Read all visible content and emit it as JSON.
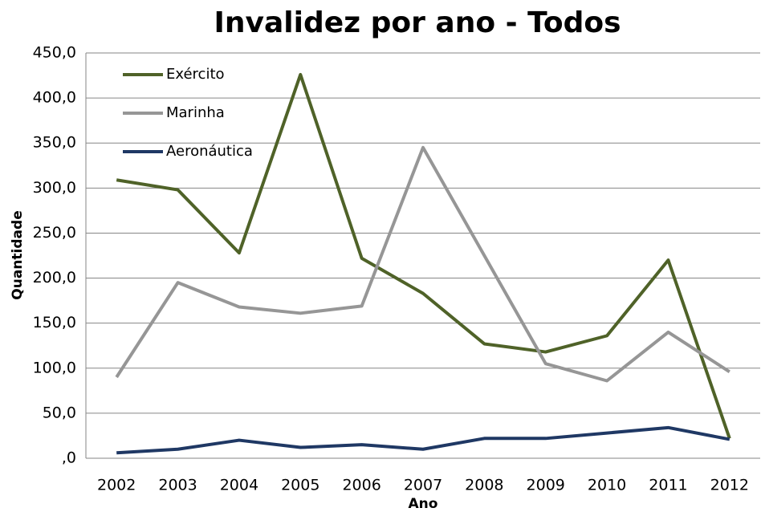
{
  "chart_data": {
    "type": "line",
    "title": "Invalidez por ano - Todos",
    "x_label": "Ano",
    "y_label": "Quantidade",
    "categories": [
      "2002",
      "2003",
      "2004",
      "2005",
      "2006",
      "2007",
      "2008",
      "2009",
      "2010",
      "2011",
      "2012"
    ],
    "series": [
      {
        "name": "Exército",
        "color": "#4f6228",
        "values": [
          309,
          298,
          228,
          426,
          222,
          183,
          127,
          118,
          136,
          220,
          22
        ]
      },
      {
        "name": "Marinha",
        "color": "#969696",
        "values": [
          90,
          195,
          168,
          161,
          169,
          345,
          225,
          105,
          86,
          140,
          96
        ]
      },
      {
        "name": "Aeronáutica",
        "color": "#1f3864",
        "values": [
          6,
          10,
          20,
          12,
          15,
          10,
          22,
          22,
          28,
          34,
          21
        ]
      }
    ],
    "ylim": [
      0,
      450
    ],
    "yticks": [
      {
        "value": 0,
        "label": ",0"
      },
      {
        "value": 50,
        "label": "50,0"
      },
      {
        "value": 100,
        "label": "100,0"
      },
      {
        "value": 150,
        "label": "150,0"
      },
      {
        "value": 200,
        "label": "200,0"
      },
      {
        "value": 250,
        "label": "250,0"
      },
      {
        "value": 300,
        "label": "300,0"
      },
      {
        "value": 350,
        "label": "350,0"
      },
      {
        "value": 400,
        "label": "400,0"
      },
      {
        "value": 450,
        "label": "450,0"
      }
    ],
    "grid": true,
    "legend": "top-left"
  }
}
